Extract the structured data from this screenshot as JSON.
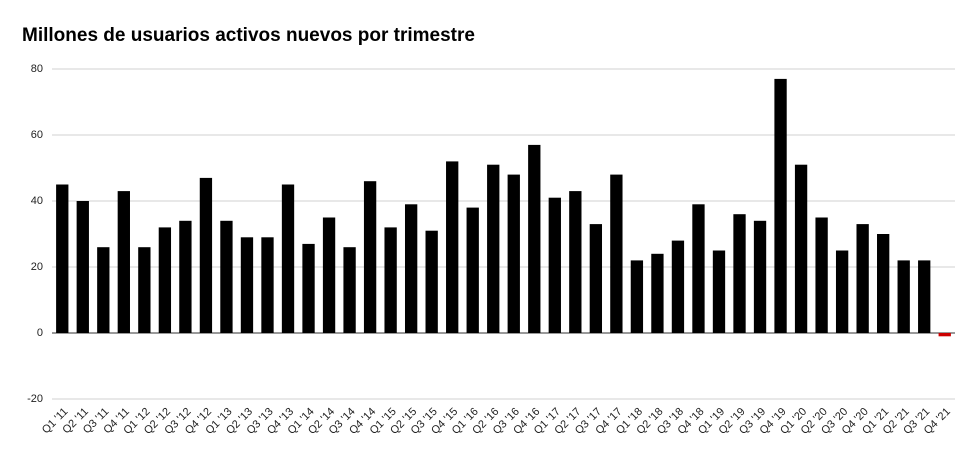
{
  "chart_data": {
    "type": "bar",
    "title": "Millones de usuarios activos nuevos por trimestre",
    "categories": [
      "Q1 '11",
      "Q2 '11",
      "Q3 '11",
      "Q4 '11",
      "Q1 '12",
      "Q2 '12",
      "Q3 '12",
      "Q4 '12",
      "Q1 '13",
      "Q2 '13",
      "Q3 '13",
      "Q4 '13",
      "Q1 '14",
      "Q2 '14",
      "Q3 '14",
      "Q4 '14",
      "Q1 '15",
      "Q2 '15",
      "Q3 '15",
      "Q4 '15",
      "Q1 '16",
      "Q2 '16",
      "Q3 '16",
      "Q4 '16",
      "Q1 '17",
      "Q2 '17",
      "Q3 '17",
      "Q4 '17",
      "Q1 '18",
      "Q2 '18",
      "Q3 '18",
      "Q4 '18",
      "Q1 '19",
      "Q2 '19",
      "Q3 '19",
      "Q4 '19",
      "Q1 '20",
      "Q2 '20",
      "Q3 '20",
      "Q4 '20",
      "Q1 '21",
      "Q2 '21",
      "Q3 '21",
      "Q4 '21"
    ],
    "values": [
      45,
      40,
      26,
      43,
      26,
      32,
      34,
      47,
      34,
      29,
      29,
      45,
      27,
      35,
      26,
      46,
      32,
      39,
      31,
      52,
      38,
      51,
      48,
      57,
      41,
      43,
      33,
      48,
      22,
      24,
      28,
      39,
      25,
      36,
      34,
      77,
      51,
      35,
      25,
      33,
      30,
      22,
      22,
      -1
    ],
    "color": "#000000",
    "negative_color": "#cc0000",
    "ylim": [
      -20,
      80
    ],
    "yticks": [
      -20,
      0,
      20,
      40,
      60,
      80
    ],
    "grid": true
  }
}
